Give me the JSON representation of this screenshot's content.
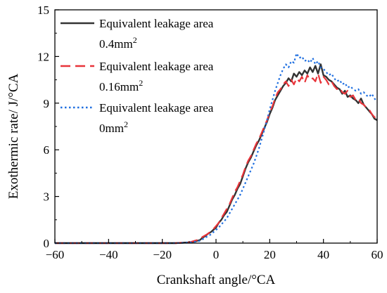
{
  "chart_data": {
    "type": "line",
    "xlabel": "Crankshaft angle/°CA",
    "ylabel": "Exothermic rate/ J/°CA",
    "xlim": [
      -60,
      60
    ],
    "ylim": [
      0,
      15
    ],
    "xticks": [
      -60,
      -40,
      -20,
      0,
      20,
      40,
      60
    ],
    "yticks": [
      0,
      3,
      6,
      9,
      12,
      15
    ],
    "grid": false,
    "legend_position": "top-left",
    "series": [
      {
        "name_line1": "Equivalent leakage area",
        "name_line2": "0.4mm",
        "name_sup": "2",
        "color": "#333333",
        "style": "solid",
        "x": [
          -60,
          -15,
          -10,
          -8,
          -6,
          -5,
          -4,
          -3,
          -2,
          -1,
          0,
          1,
          2,
          3,
          4,
          5,
          6,
          7,
          8,
          9,
          10,
          11,
          12,
          13,
          14,
          15,
          16,
          17,
          18,
          19,
          20,
          21,
          22,
          23,
          24,
          25,
          26,
          27,
          28,
          29,
          30,
          31,
          32,
          33,
          34,
          35,
          36,
          37,
          38,
          39,
          40,
          41,
          42,
          43,
          44,
          45,
          46,
          47,
          48,
          49,
          50,
          51,
          52,
          53,
          54,
          55,
          56,
          57,
          58,
          59,
          60
        ],
        "y": [
          0,
          0,
          0.05,
          0.1,
          0.2,
          0.35,
          0.45,
          0.6,
          0.7,
          0.85,
          1.0,
          1.3,
          1.5,
          1.8,
          2.0,
          2.4,
          2.8,
          3.1,
          3.5,
          3.8,
          4.3,
          4.8,
          5.2,
          5.5,
          5.9,
          6.3,
          6.6,
          7.0,
          7.4,
          7.8,
          8.3,
          8.7,
          9.2,
          9.5,
          9.8,
          10.1,
          10.3,
          10.6,
          10.4,
          10.9,
          10.7,
          11.0,
          10.8,
          11.1,
          10.9,
          11.3,
          11.0,
          11.4,
          10.9,
          11.5,
          10.8,
          10.7,
          10.5,
          10.4,
          10.2,
          10.0,
          9.9,
          9.6,
          9.8,
          9.4,
          9.5,
          9.3,
          9.2,
          9.0,
          9.3,
          8.9,
          8.7,
          8.5,
          8.3,
          8.0,
          7.9
        ]
      },
      {
        "name_line1": "Equivalent leakage area",
        "name_line2": "0.16mm",
        "name_sup": "2",
        "color": "#e8343a",
        "style": "dashed",
        "x": [
          -60,
          -15,
          -10,
          -8,
          -6,
          -5,
          -4,
          -3,
          -2,
          -1,
          0,
          1,
          2,
          3,
          4,
          5,
          6,
          7,
          8,
          9,
          10,
          11,
          12,
          13,
          14,
          15,
          16,
          17,
          18,
          19,
          20,
          21,
          22,
          23,
          24,
          25,
          26,
          27,
          28,
          29,
          30,
          31,
          32,
          33,
          34,
          35,
          36,
          37,
          38,
          39,
          40,
          41,
          42,
          43,
          44,
          45,
          46,
          47,
          48,
          49,
          50,
          51,
          52,
          53,
          54,
          55,
          56,
          57,
          58,
          59,
          60
        ],
        "y": [
          0,
          0,
          0.05,
          0.15,
          0.25,
          0.4,
          0.5,
          0.6,
          0.75,
          0.9,
          1.1,
          1.3,
          1.6,
          1.9,
          2.2,
          2.5,
          2.9,
          3.3,
          3.6,
          4.0,
          4.4,
          4.9,
          5.3,
          5.6,
          6.0,
          6.4,
          6.7,
          7.1,
          7.5,
          7.9,
          8.4,
          8.8,
          9.3,
          9.7,
          9.9,
          10.2,
          10.4,
          10.1,
          10.5,
          10.2,
          10.6,
          10.4,
          10.7,
          10.3,
          10.8,
          10.5,
          10.6,
          10.4,
          10.9,
          10.3,
          10.7,
          10.5,
          10.2,
          10.4,
          10.1,
          9.9,
          10.0,
          9.7,
          9.6,
          9.8,
          9.4,
          9.5,
          9.2,
          9.3,
          9.0,
          8.9,
          8.7,
          8.6,
          8.3,
          8.1,
          8.0
        ]
      },
      {
        "name_line1": "Equivalent leakage area",
        "name_line2": "0mm",
        "name_sup": "2",
        "color": "#1f6fe0",
        "style": "dotted",
        "x": [
          -60,
          -15,
          -10,
          -8,
          -6,
          -5,
          -4,
          -3,
          -2,
          -1,
          0,
          1,
          2,
          3,
          4,
          5,
          6,
          7,
          8,
          9,
          10,
          11,
          12,
          13,
          14,
          15,
          16,
          17,
          18,
          19,
          20,
          21,
          22,
          23,
          24,
          25,
          26,
          27,
          28,
          29,
          30,
          31,
          32,
          33,
          34,
          35,
          36,
          37,
          38,
          39,
          40,
          41,
          42,
          43,
          44,
          45,
          46,
          47,
          48,
          49,
          50,
          51,
          52,
          53,
          54,
          55,
          56,
          57,
          58,
          59,
          60
        ],
        "y": [
          0,
          0,
          0.03,
          0.08,
          0.15,
          0.25,
          0.35,
          0.45,
          0.55,
          0.7,
          0.85,
          1.0,
          1.2,
          1.4,
          1.6,
          1.9,
          2.2,
          2.5,
          2.8,
          3.1,
          3.5,
          3.9,
          4.3,
          4.7,
          5.1,
          5.6,
          6.1,
          6.7,
          7.3,
          7.9,
          8.6,
          9.2,
          9.8,
          10.3,
          10.8,
          11.2,
          11.5,
          11.3,
          11.7,
          11.6,
          12.2,
          11.9,
          12.0,
          11.7,
          11.8,
          11.6,
          11.9,
          11.5,
          11.7,
          11.3,
          11.2,
          11.0,
          10.8,
          10.9,
          10.6,
          10.4,
          10.5,
          10.2,
          10.3,
          10.0,
          10.1,
          9.9,
          9.8,
          9.9,
          9.6,
          9.7,
          9.5,
          9.4,
          9.6,
          9.3,
          9.1
        ]
      }
    ]
  }
}
